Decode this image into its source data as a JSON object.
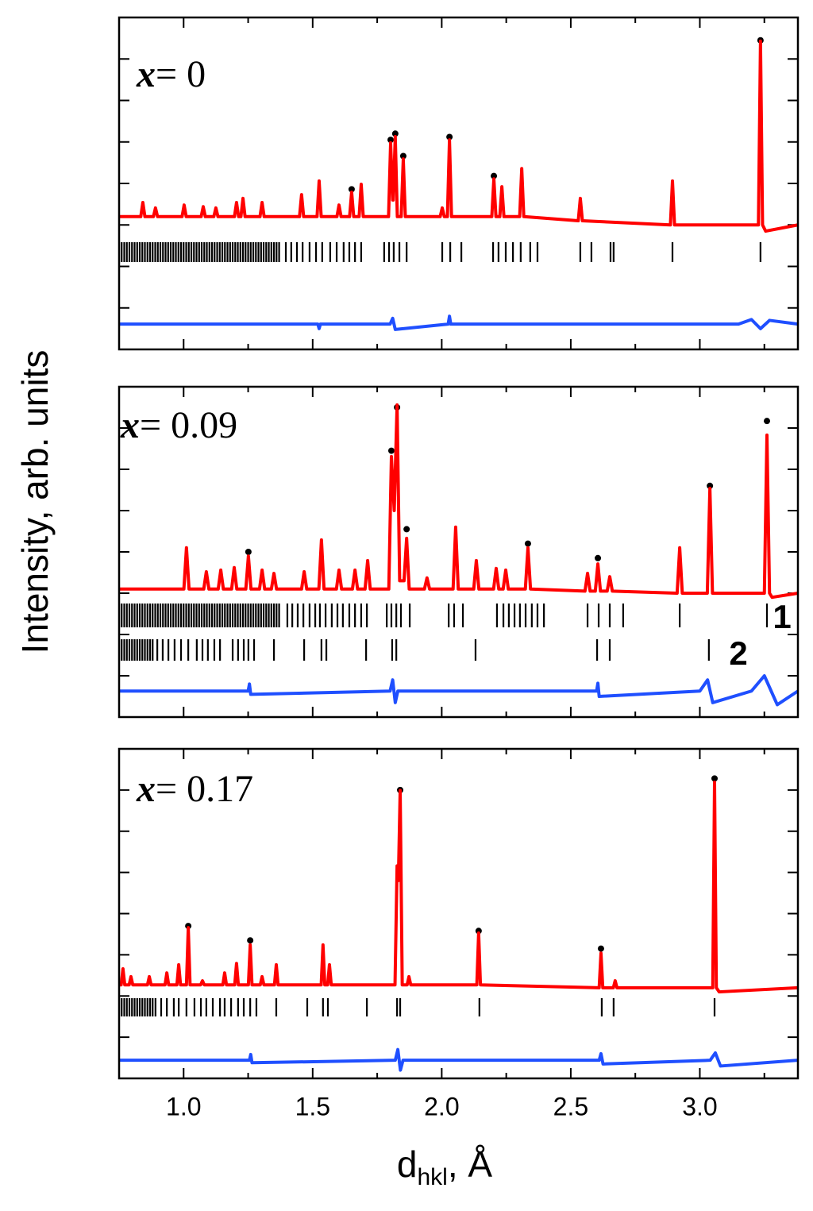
{
  "chart_data": [
    {
      "type": "line",
      "annotation": {
        "var": "x",
        "text": "= 0"
      },
      "xlim": [
        0.75,
        3.38
      ],
      "ylim": [
        0,
        8
      ],
      "xticks": [
        1,
        1.5,
        2,
        2.5,
        3
      ],
      "xminorticks": [
        1.25,
        1.75,
        2.25,
        2.75,
        3.25
      ],
      "yticks": [
        1,
        2,
        3,
        4,
        5,
        6,
        7
      ],
      "observed": {
        "color": "#000000",
        "x": [
          1.802,
          1.82,
          1.851,
          2.03,
          2.202,
          1.651,
          3.235
        ],
        "values": [
          5.05,
          5.2,
          4.66,
          5.12,
          4.18,
          3.86,
          7.45
        ]
      },
      "calculated": {
        "color": "#ff0000",
        "x": [
          0.75,
          0.834,
          0.842,
          0.85,
          0.883,
          0.891,
          0.899,
          0.994,
          1.002,
          1.01,
          1.068,
          1.076,
          1.084,
          1.117,
          1.125,
          1.133,
          1.197,
          1.205,
          1.213,
          1.222,
          1.23,
          1.238,
          1.296,
          1.304,
          1.312,
          1.449,
          1.457,
          1.465,
          1.517,
          1.525,
          1.533,
          1.594,
          1.602,
          1.61,
          1.643,
          1.651,
          1.659,
          1.68,
          1.688,
          1.696,
          1.794,
          1.802,
          1.81,
          1.812,
          1.82,
          1.828,
          1.843,
          1.851,
          1.859,
          1.994,
          2.002,
          2.01,
          2.022,
          2.03,
          2.038,
          2.194,
          2.202,
          2.21,
          2.225,
          2.233,
          2.241,
          2.302,
          2.31,
          2.318,
          2.529,
          2.537,
          2.545,
          2.886,
          2.894,
          2.902,
          3.227,
          3.235,
          3.243,
          3.255,
          3.38
        ],
        "values": [
          3.2,
          3.2,
          3.54,
          3.2,
          3.2,
          3.41,
          3.2,
          3.2,
          3.48,
          3.2,
          3.2,
          3.44,
          3.2,
          3.2,
          3.41,
          3.2,
          3.2,
          3.54,
          3.2,
          3.2,
          3.64,
          3.2,
          3.2,
          3.54,
          3.2,
          3.2,
          3.73,
          3.2,
          3.2,
          4.06,
          3.2,
          3.2,
          3.48,
          3.2,
          3.2,
          3.79,
          3.2,
          3.2,
          3.98,
          3.2,
          3.2,
          4.98,
          3.6,
          3.6,
          5.13,
          3.2,
          3.2,
          4.59,
          3.2,
          3.2,
          3.41,
          3.2,
          3.2,
          5.05,
          3.2,
          3.2,
          4.11,
          3.2,
          3.2,
          3.92,
          3.2,
          3.2,
          4.36,
          3.2,
          3.1,
          3.64,
          3.1,
          3.0,
          4.06,
          3.0,
          3.0,
          7.43,
          3.0,
          2.85,
          3.0
        ]
      },
      "difference": {
        "color": "#1f4fff",
        "x": [
          0.75,
          1.52,
          1.525,
          1.53,
          1.8,
          1.81,
          1.82,
          2.025,
          2.03,
          2.035,
          3.15,
          3.2,
          3.235,
          3.27,
          3.38
        ],
        "values": [
          0.61,
          0.61,
          0.5,
          0.61,
          0.61,
          0.75,
          0.48,
          0.61,
          0.8,
          0.61,
          0.61,
          0.72,
          0.5,
          0.7,
          0.61
        ]
      },
      "bragg_ticks": [
        {
          "positions": [
            0.76,
            0.77,
            0.78,
            0.79,
            0.8,
            0.81,
            0.82,
            0.83,
            0.84,
            0.85,
            0.86,
            0.87,
            0.88,
            0.89,
            0.9,
            0.91,
            0.92,
            0.93,
            0.94,
            0.95,
            0.96,
            0.97,
            0.98,
            0.99,
            1,
            1.01,
            1.02,
            1.03,
            1.04,
            1.05,
            1.06,
            1.07,
            1.08,
            1.09,
            1.1,
            1.11,
            1.12,
            1.13,
            1.14,
            1.15,
            1.16,
            1.17,
            1.18,
            1.19,
            1.2,
            1.21,
            1.22,
            1.23,
            1.24,
            1.25,
            1.26,
            1.27,
            1.28,
            1.29,
            1.3,
            1.31,
            1.32,
            1.33,
            1.34,
            1.35,
            1.36,
            1.37,
            1.396,
            1.417,
            1.439,
            1.461,
            1.488,
            1.513,
            1.537,
            1.568,
            1.593,
            1.62,
            1.642,
            1.664,
            1.688,
            1.777,
            1.796,
            1.814,
            1.836,
            1.864,
            2.002,
            2.033,
            2.076,
            2.199,
            2.22,
            2.248,
            2.276,
            2.306,
            2.343,
            2.371,
            2.537,
            2.58,
            2.654,
            2.666,
            2.894,
            3.235
          ]
        }
      ]
    },
    {
      "type": "line",
      "annotation": {
        "var": "x",
        "text": "= 0.09"
      },
      "y_label": "Intensity, arb. units",
      "phase_labels": [
        "1",
        "2"
      ],
      "xlim": [
        0.75,
        3.38
      ],
      "ylim": [
        0,
        8
      ],
      "xticks": [
        1,
        1.5,
        2,
        2.5,
        3
      ],
      "xminorticks": [
        1.25,
        1.75,
        2.25,
        2.75,
        3.25
      ],
      "yticks": [
        1,
        2,
        3,
        4,
        5,
        6,
        7
      ],
      "observed": {
        "color": "#000000",
        "x": [
          1.251,
          1.805,
          1.827,
          1.864,
          2.334,
          2.605,
          3.039,
          3.26
        ],
        "values": [
          4.0,
          6.45,
          7.5,
          4.55,
          4.2,
          3.85,
          5.6,
          7.17
        ]
      },
      "calculated": {
        "color": "#ff0000",
        "x": [
          0.75,
          1.001,
          1.011,
          1.021,
          1.078,
          1.088,
          1.098,
          1.134,
          1.144,
          1.154,
          1.186,
          1.196,
          1.206,
          1.241,
          1.251,
          1.261,
          1.294,
          1.304,
          1.314,
          1.34,
          1.35,
          1.36,
          1.457,
          1.467,
          1.477,
          1.524,
          1.534,
          1.544,
          1.592,
          1.602,
          1.612,
          1.654,
          1.664,
          1.674,
          1.703,
          1.713,
          1.723,
          1.795,
          1.805,
          1.816,
          1.827,
          1.837,
          1.854,
          1.864,
          1.874,
          1.933,
          1.943,
          1.953,
          2.044,
          2.054,
          2.064,
          2.124,
          2.134,
          2.144,
          2.201,
          2.211,
          2.221,
          2.238,
          2.248,
          2.258,
          2.324,
          2.334,
          2.344,
          2.555,
          2.565,
          2.575,
          2.595,
          2.605,
          2.615,
          2.641,
          2.651,
          2.661,
          2.912,
          2.922,
          2.932,
          3.029,
          3.039,
          3.049,
          3.25,
          3.26,
          3.27,
          3.28,
          3.38
        ],
        "values": [
          3.1,
          3.1,
          4.1,
          3.1,
          3.1,
          3.52,
          3.1,
          3.1,
          3.56,
          3.1,
          3.1,
          3.62,
          3.1,
          3.1,
          3.9,
          3.1,
          3.1,
          3.56,
          3.1,
          3.1,
          3.48,
          3.1,
          3.1,
          3.52,
          3.1,
          3.1,
          4.29,
          3.1,
          3.1,
          3.56,
          3.1,
          3.1,
          3.56,
          3.1,
          3.1,
          3.79,
          3.1,
          3.1,
          6.31,
          5.0,
          7.56,
          3.3,
          3.3,
          4.33,
          3.1,
          3.1,
          3.37,
          3.1,
          3.1,
          4.6,
          3.1,
          3.1,
          3.79,
          3.1,
          3.1,
          3.6,
          3.1,
          3.1,
          3.56,
          3.1,
          3.1,
          4.1,
          3.1,
          3.05,
          3.48,
          3.05,
          3.05,
          3.71,
          3.05,
          3.05,
          3.4,
          3.05,
          3.0,
          4.1,
          3.0,
          3.0,
          5.54,
          3.0,
          3.0,
          6.83,
          3.0,
          2.9,
          3.0
        ]
      },
      "difference": {
        "color": "#1f4fff",
        "x": [
          0.75,
          1.25,
          1.255,
          1.26,
          1.8,
          1.81,
          1.82,
          1.83,
          2.6,
          2.605,
          2.61,
          3.0,
          3.03,
          3.05,
          3.2,
          3.25,
          3.3,
          3.38
        ],
        "values": [
          0.63,
          0.63,
          0.8,
          0.55,
          0.63,
          0.9,
          0.35,
          0.63,
          0.63,
          0.82,
          0.5,
          0.63,
          0.9,
          0.35,
          0.63,
          1.0,
          0.3,
          0.63
        ]
      },
      "bragg_ticks": [
        {
          "positions": [
            0.76,
            0.77,
            0.78,
            0.79,
            0.8,
            0.81,
            0.82,
            0.83,
            0.84,
            0.85,
            0.86,
            0.87,
            0.88,
            0.89,
            0.9,
            0.91,
            0.92,
            0.93,
            0.94,
            0.95,
            0.96,
            0.97,
            0.98,
            0.99,
            1,
            1.01,
            1.02,
            1.03,
            1.04,
            1.05,
            1.06,
            1.07,
            1.08,
            1.09,
            1.1,
            1.11,
            1.12,
            1.13,
            1.14,
            1.15,
            1.16,
            1.17,
            1.18,
            1.19,
            1.2,
            1.21,
            1.22,
            1.23,
            1.24,
            1.25,
            1.26,
            1.27,
            1.28,
            1.29,
            1.3,
            1.31,
            1.32,
            1.33,
            1.34,
            1.35,
            1.36,
            1.37,
            1.402,
            1.421,
            1.442,
            1.464,
            1.488,
            1.51,
            1.528,
            1.55,
            1.574,
            1.596,
            1.617,
            1.642,
            1.664,
            1.688,
            1.71,
            1.787,
            1.805,
            1.824,
            1.842,
            1.876,
            2.027,
            2.048,
            2.082,
            2.214,
            2.239,
            2.26,
            2.282,
            2.303,
            2.325,
            2.349,
            2.371,
            2.396,
            2.565,
            2.608,
            2.651,
            2.703,
            2.922,
            3.26
          ]
        },
        {
          "positions": [
            0.76,
            0.77,
            0.78,
            0.79,
            0.8,
            0.81,
            0.82,
            0.83,
            0.84,
            0.85,
            0.86,
            0.87,
            0.88,
            0.898,
            0.919,
            0.941,
            0.965,
            0.99,
            1.018,
            1.051,
            1.073,
            1.094,
            1.119,
            1.141,
            1.19,
            1.211,
            1.233,
            1.251,
            1.273,
            1.35,
            1.467,
            1.534,
            1.553,
            1.707,
            1.808,
            1.824,
            2.131,
            2.602,
            2.651,
            3.035
          ]
        }
      ]
    },
    {
      "type": "line",
      "annotation": {
        "var": "x",
        "text": "= 0.17"
      },
      "x_label": {
        "main": "d",
        "sub": "hkl",
        "rest": ", Å"
      },
      "xlim": [
        0.75,
        3.38
      ],
      "ylim": [
        0,
        8
      ],
      "xticks": [
        {
          "value": 1,
          "label": "1.0"
        },
        {
          "value": 1.5,
          "label": "1.5"
        },
        {
          "value": 2,
          "label": "2.0"
        },
        {
          "value": 2.5,
          "label": "2.5"
        },
        {
          "value": 3,
          "label": "3.0"
        }
      ],
      "xminorticks": [
        1.25,
        1.75,
        2.25,
        2.75,
        3.25
      ],
      "yticks": [
        1,
        2,
        3,
        4,
        5,
        6,
        7
      ],
      "observed": {
        "color": "#000000",
        "x": [
          1.018,
          1.258,
          1.839,
          2.143,
          2.617,
          3.057
        ],
        "values": [
          3.7,
          3.35,
          7.0,
          3.58,
          3.15,
          7.28
        ]
      },
      "calculated": {
        "color": "#ff0000",
        "x": [
          0.75,
          0.758,
          0.765,
          0.772,
          0.789,
          0.796,
          0.803,
          0.86,
          0.867,
          0.874,
          0.928,
          0.935,
          0.942,
          0.974,
          0.981,
          0.988,
          1.011,
          1.018,
          1.025,
          1.066,
          1.073,
          1.08,
          1.152,
          1.159,
          1.166,
          1.198,
          1.205,
          1.212,
          1.251,
          1.258,
          1.265,
          1.297,
          1.304,
          1.311,
          1.352,
          1.359,
          1.366,
          1.533,
          1.54,
          1.547,
          1.558,
          1.565,
          1.572,
          1.819,
          1.827,
          1.832,
          1.839,
          1.847,
          1.866,
          1.873,
          1.88,
          2.136,
          2.143,
          2.15,
          2.61,
          2.617,
          2.624,
          2.665,
          2.672,
          2.679,
          3.05,
          3.057,
          3.064,
          3.075,
          3.38
        ],
        "values": [
          2.27,
          2.27,
          2.66,
          2.27,
          2.27,
          2.47,
          2.27,
          2.27,
          2.47,
          2.27,
          2.27,
          2.56,
          2.27,
          2.27,
          2.76,
          2.27,
          2.27,
          3.66,
          2.27,
          2.27,
          2.37,
          2.27,
          2.27,
          2.56,
          2.27,
          2.27,
          2.79,
          2.27,
          2.27,
          3.24,
          2.27,
          2.27,
          2.47,
          2.27,
          2.27,
          2.76,
          2.27,
          2.27,
          3.24,
          2.27,
          2.27,
          2.76,
          2.27,
          2.27,
          5.16,
          4.8,
          6.99,
          2.27,
          2.27,
          2.47,
          2.27,
          2.27,
          3.53,
          2.27,
          2.2,
          3.04,
          2.2,
          2.2,
          2.37,
          2.2,
          2.2,
          7.19,
          2.2,
          2.1,
          2.2
        ]
      },
      "difference": {
        "color": "#1f4fff",
        "x": [
          0.75,
          1.255,
          1.26,
          1.265,
          1.82,
          1.83,
          1.84,
          1.85,
          2.61,
          2.617,
          2.625,
          3.04,
          3.06,
          3.08,
          3.38
        ],
        "values": [
          0.44,
          0.44,
          0.58,
          0.38,
          0.44,
          0.7,
          0.2,
          0.44,
          0.44,
          0.6,
          0.35,
          0.44,
          0.62,
          0.3,
          0.44
        ]
      },
      "bragg_ticks": [
        {
          "positions": [
            0.76,
            0.77,
            0.78,
            0.79,
            0.8,
            0.81,
            0.82,
            0.83,
            0.84,
            0.85,
            0.86,
            0.87,
            0.88,
            0.891,
            0.913,
            0.935,
            0.962,
            0.981,
            1.011,
            1.042,
            1.067,
            1.088,
            1.113,
            1.141,
            1.159,
            1.184,
            1.211,
            1.233,
            1.258,
            1.282,
            1.359,
            1.479,
            1.54,
            1.559,
            1.71,
            1.827,
            1.839,
            2.146,
            2.62,
            2.666,
            3.057
          ]
        }
      ]
    }
  ]
}
